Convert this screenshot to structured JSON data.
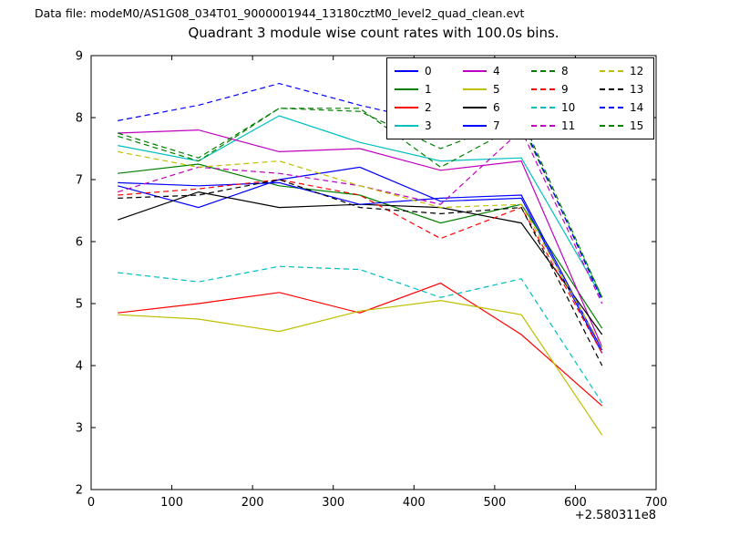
{
  "header": {
    "data_file_label": "Data file: modeM0/AS1G08_034T01_9000001944_13180cztM0_level2_quad_clean.evt"
  },
  "chart_data": {
    "type": "line",
    "title": "Quadrant 3 module wise count rates with 100.0s bins.",
    "xlabel": "",
    "ylabel": "",
    "x_offset_label": "+2.580311e8",
    "xlim": [
      0,
      700
    ],
    "ylim": [
      2,
      9
    ],
    "xticks": [
      0,
      100,
      200,
      300,
      400,
      500,
      600,
      700
    ],
    "yticks": [
      2,
      3,
      4,
      5,
      6,
      7,
      8,
      9
    ],
    "grid": false,
    "legend_position": "upper right",
    "legend_columns": 4,
    "x": [
      33,
      133,
      233,
      333,
      433,
      533,
      633
    ],
    "series": [
      {
        "name": "0",
        "color": "#0000ff",
        "dash": "solid",
        "values": [
          6.9,
          6.55,
          7.0,
          7.2,
          6.65,
          6.7,
          4.2
        ]
      },
      {
        "name": "1",
        "color": "#008000",
        "dash": "solid",
        "values": [
          7.1,
          7.25,
          6.9,
          6.75,
          6.3,
          6.6,
          4.6
        ]
      },
      {
        "name": "2",
        "color": "#ff0000",
        "dash": "solid",
        "values": [
          4.85,
          5.0,
          5.18,
          4.85,
          5.33,
          4.5,
          3.35
        ]
      },
      {
        "name": "3",
        "color": "#00bfbf",
        "dash": "solid",
        "values": [
          7.55,
          7.3,
          8.03,
          7.6,
          7.3,
          7.35,
          5.1
        ]
      },
      {
        "name": "4",
        "color": "#bf00bf",
        "dash": "solid",
        "values": [
          7.75,
          7.8,
          7.45,
          7.5,
          7.15,
          7.3,
          4.3
        ]
      },
      {
        "name": "5",
        "color": "#bfbf00",
        "dash": "solid",
        "values": [
          4.82,
          4.75,
          4.55,
          4.88,
          5.05,
          4.82,
          2.88
        ]
      },
      {
        "name": "6",
        "color": "#000000",
        "dash": "solid",
        "values": [
          6.35,
          6.8,
          6.55,
          6.6,
          6.55,
          6.3,
          4.5
        ]
      },
      {
        "name": "7",
        "color": "#0000ff",
        "dash": "solid",
        "values": [
          6.95,
          6.9,
          6.95,
          6.6,
          6.7,
          6.75,
          4.25
        ]
      },
      {
        "name": "8",
        "color": "#008000",
        "dash": "dashed",
        "values": [
          7.7,
          7.3,
          8.15,
          8.15,
          7.2,
          7.9,
          5.1
        ]
      },
      {
        "name": "9",
        "color": "#ff0000",
        "dash": "dashed",
        "values": [
          6.75,
          6.85,
          7.0,
          6.75,
          6.05,
          6.55,
          4.2
        ]
      },
      {
        "name": "10",
        "color": "#00bfbf",
        "dash": "dashed",
        "values": [
          5.5,
          5.35,
          5.6,
          5.55,
          5.1,
          5.4,
          3.4
        ]
      },
      {
        "name": "11",
        "color": "#bf00bf",
        "dash": "dashed",
        "values": [
          6.8,
          7.2,
          7.1,
          6.9,
          6.6,
          7.8,
          5.0
        ]
      },
      {
        "name": "12",
        "color": "#bfbf00",
        "dash": "dashed",
        "values": [
          7.45,
          7.2,
          7.3,
          6.9,
          6.55,
          6.6,
          4.3
        ]
      },
      {
        "name": "13",
        "color": "#000000",
        "dash": "dashed",
        "values": [
          6.7,
          6.75,
          7.0,
          6.55,
          6.45,
          6.55,
          4.0
        ]
      },
      {
        "name": "14",
        "color": "#0000ff",
        "dash": "dashed",
        "values": [
          7.95,
          8.2,
          8.55,
          8.2,
          7.9,
          7.95,
          5.05
        ]
      },
      {
        "name": "15",
        "color": "#008000",
        "dash": "dashed",
        "values": [
          7.75,
          7.35,
          8.15,
          8.1,
          7.5,
          8.0,
          5.1
        ]
      }
    ]
  }
}
